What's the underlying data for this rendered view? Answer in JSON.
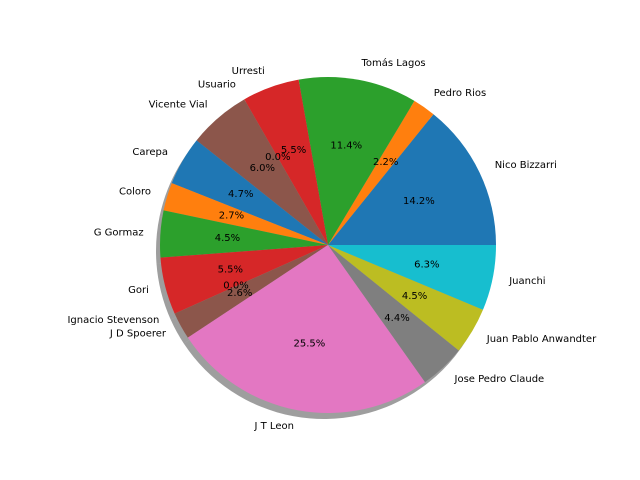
{
  "chart_data": {
    "type": "pie",
    "title": "",
    "shadow": true,
    "start_angle_deg": 0,
    "direction": "counterclockwise",
    "slices": [
      {
        "label": "Nico Bizzarri",
        "value": 14.2,
        "pct_label": "14.2%",
        "color": "#1f77b4"
      },
      {
        "label": "Pedro Rios",
        "value": 2.2,
        "pct_label": "2.2%",
        "color": "#ff7f0e"
      },
      {
        "label": "Tomás Lagos",
        "value": 11.4,
        "pct_label": "11.4%",
        "color": "#2ca02c"
      },
      {
        "label": "Urresti",
        "value": 5.5,
        "pct_label": "5.5%",
        "color": "#d62728"
      },
      {
        "label": "Usuario",
        "value": 0.0,
        "pct_label": "0.0%",
        "color": "#9467bd"
      },
      {
        "label": "Vicente Vial",
        "value": 6.0,
        "pct_label": "6.0%",
        "color": "#8c564b"
      },
      {
        "label": "Carepa",
        "value": 4.7,
        "pct_label": "4.7%",
        "color": "#1f77b4"
      },
      {
        "label": "Coloro",
        "value": 2.7,
        "pct_label": "2.7%",
        "color": "#ff7f0e"
      },
      {
        "label": "G Gormaz",
        "value": 4.5,
        "pct_label": "4.5%",
        "color": "#2ca02c"
      },
      {
        "label": "Gori",
        "value": 5.5,
        "pct_label": "5.5%",
        "color": "#d62728"
      },
      {
        "label": "Ignacio Stevenson",
        "value": 0.0,
        "pct_label": "0.0%",
        "color": "#9467bd"
      },
      {
        "label": "J D Spoerer",
        "value": 2.6,
        "pct_label": "2.6%",
        "color": "#8c564b"
      },
      {
        "label": "J T Leon",
        "value": 25.5,
        "pct_label": "25.5%",
        "color": "#e377c2"
      },
      {
        "label": "Jose Pedro Claude",
        "value": 4.4,
        "pct_label": "4.4%",
        "color": "#7f7f7f"
      },
      {
        "label": "Juan Pablo Anwandter",
        "value": 4.5,
        "pct_label": "4.5%",
        "color": "#bcbd22"
      },
      {
        "label": "Juanchi",
        "value": 6.3,
        "pct_label": "6.3%",
        "color": "#17becf"
      }
    ]
  }
}
